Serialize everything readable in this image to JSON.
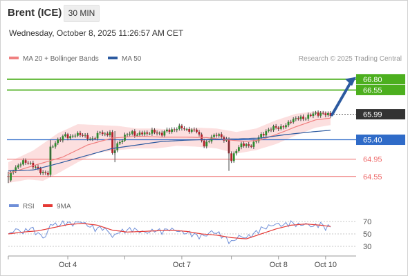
{
  "header": {
    "instrument": "Brent (ICE)",
    "timeframe": "30 MIN",
    "datetime": "Wednesday, October 8, 2025 11:26:57 AM CET"
  },
  "legend": {
    "ma20": "MA 20 + Bollinger Bands",
    "ma50": "MA 50",
    "rsi": "RSI",
    "nine_ma": "9MA",
    "credit": "Research © 2025 Trading Central"
  },
  "colors": {
    "ma20": "#f08080",
    "ma50": "#2c5aa0",
    "band_fill": "#fcdcdc",
    "target": "#4caf1e",
    "support": "#ee6a6a",
    "pivot": "#2f6bc8",
    "current": "#333333",
    "arrow": "#2c5aa0",
    "rsi": "#6f8fd8",
    "rsi_ma": "#e53935"
  },
  "chart_data": [
    {
      "type": "candlestick",
      "title": "Brent (ICE)",
      "timeframe": "30 MIN",
      "x_ticks": [
        "Oct 4",
        "Oct 7",
        "Oct 8",
        "Oct 10"
      ],
      "ylim": [
        64.1,
        67.1
      ],
      "grid": false,
      "legend_position": "top-left",
      "levels": [
        {
          "value": 66.8,
          "label": "66.80",
          "kind": "target"
        },
        {
          "value": 66.55,
          "label": "66.55",
          "kind": "target"
        },
        {
          "value": 65.99,
          "label": "65.99",
          "kind": "current"
        },
        {
          "value": 65.4,
          "label": "65.40",
          "kind": "pivot"
        },
        {
          "value": 64.95,
          "label": "64.95",
          "kind": "support"
        },
        {
          "value": 64.55,
          "label": "64.55",
          "kind": "support"
        }
      ],
      "series": [
        {
          "name": "MA 20 + Bollinger Bands",
          "role": "ma20",
          "values": [
            [
              0,
              64.62
            ],
            [
              10,
              64.8
            ],
            [
              22,
              65.0
            ],
            [
              32,
              65.28
            ],
            [
              42,
              65.44
            ],
            [
              52,
              65.48
            ],
            [
              62,
              65.46
            ],
            [
              72,
              65.46
            ],
            [
              80,
              65.45
            ],
            [
              88,
              65.4
            ],
            [
              96,
              65.36
            ],
            [
              102,
              65.4
            ],
            [
              108,
              65.52
            ],
            [
              116,
              65.7
            ],
            [
              124,
              65.86
            ],
            [
              130,
              65.9
            ]
          ],
          "upper": [
            [
              0,
              64.88
            ],
            [
              10,
              65.15
            ],
            [
              20,
              65.55
            ],
            [
              28,
              65.76
            ],
            [
              36,
              65.74
            ],
            [
              44,
              65.72
            ],
            [
              52,
              65.66
            ],
            [
              60,
              65.66
            ],
            [
              68,
              65.62
            ],
            [
              76,
              65.68
            ],
            [
              84,
              65.66
            ],
            [
              92,
              65.58
            ],
            [
              100,
              65.66
            ],
            [
              108,
              65.85
            ],
            [
              116,
              66.0
            ],
            [
              124,
              66.06
            ],
            [
              130,
              66.05
            ]
          ],
          "lower": [
            [
              0,
              64.4
            ],
            [
              8,
              64.48
            ],
            [
              14,
              64.45
            ],
            [
              20,
              64.62
            ],
            [
              28,
              64.88
            ],
            [
              36,
              65.1
            ],
            [
              44,
              65.16
            ],
            [
              52,
              65.2
            ],
            [
              60,
              65.2
            ],
            [
              68,
              65.26
            ],
            [
              76,
              65.24
            ],
            [
              84,
              65.2
            ],
            [
              92,
              65.08
            ],
            [
              100,
              65.16
            ],
            [
              108,
              65.3
            ],
            [
              116,
              65.5
            ],
            [
              124,
              65.68
            ],
            [
              130,
              65.74
            ]
          ]
        },
        {
          "name": "MA 50",
          "role": "ma50",
          "values": [
            [
              0,
              64.68
            ],
            [
              10,
              64.7
            ],
            [
              22,
              64.88
            ],
            [
              32,
              65.04
            ],
            [
              42,
              65.2
            ],
            [
              52,
              65.28
            ],
            [
              62,
              65.36
            ],
            [
              72,
              65.39
            ],
            [
              82,
              65.41
            ],
            [
              92,
              65.42
            ],
            [
              102,
              65.44
            ],
            [
              112,
              65.52
            ],
            [
              122,
              65.58
            ],
            [
              130,
              65.62
            ]
          ]
        },
        {
          "name": "Price",
          "role": "close",
          "values": [
            [
              0,
              64.5
            ],
            [
              2,
              64.72
            ],
            [
              4,
              64.8
            ],
            [
              6,
              64.88
            ],
            [
              8,
              64.9
            ],
            [
              10,
              64.78
            ],
            [
              12,
              64.72
            ],
            [
              14,
              64.64
            ],
            [
              16,
              64.6
            ],
            [
              17,
              65.2
            ],
            [
              19,
              65.35
            ],
            [
              21,
              65.4
            ],
            [
              23,
              65.52
            ],
            [
              25,
              65.46
            ],
            [
              27,
              65.5
            ],
            [
              29,
              65.55
            ],
            [
              31,
              65.47
            ],
            [
              33,
              65.4
            ],
            [
              35,
              65.48
            ],
            [
              37,
              65.56
            ],
            [
              39,
              65.52
            ],
            [
              41,
              65.58
            ],
            [
              42,
              65.05
            ],
            [
              44,
              65.3
            ],
            [
              46,
              65.42
            ],
            [
              48,
              65.52
            ],
            [
              50,
              65.58
            ],
            [
              52,
              65.5
            ],
            [
              54,
              65.55
            ],
            [
              56,
              65.56
            ],
            [
              58,
              65.58
            ],
            [
              60,
              65.56
            ],
            [
              62,
              65.54
            ],
            [
              64,
              65.6
            ],
            [
              66,
              65.63
            ],
            [
              68,
              65.66
            ],
            [
              70,
              65.68
            ],
            [
              72,
              65.64
            ],
            [
              74,
              65.6
            ],
            [
              76,
              65.62
            ],
            [
              78,
              65.4
            ],
            [
              79,
              65.25
            ],
            [
              80,
              65.3
            ],
            [
              82,
              65.48
            ],
            [
              84,
              65.52
            ],
            [
              86,
              65.45
            ],
            [
              88,
              65.4
            ],
            [
              89,
              65.1
            ],
            [
              90,
              64.9
            ],
            [
              92,
              65.18
            ],
            [
              94,
              65.3
            ],
            [
              96,
              65.25
            ],
            [
              98,
              65.28
            ],
            [
              100,
              65.38
            ],
            [
              102,
              65.5
            ],
            [
              104,
              65.6
            ],
            [
              106,
              65.64
            ],
            [
              108,
              65.7
            ],
            [
              110,
              65.68
            ],
            [
              112,
              65.72
            ],
            [
              114,
              65.86
            ],
            [
              116,
              65.88
            ],
            [
              118,
              65.9
            ],
            [
              120,
              65.92
            ],
            [
              122,
              65.96
            ],
            [
              124,
              66.02
            ],
            [
              126,
              66.0
            ],
            [
              128,
              65.98
            ],
            [
              130,
              65.99
            ]
          ]
        }
      ]
    },
    {
      "type": "line",
      "title": "RSI",
      "ylim": [
        20,
        80
      ],
      "y_ticks": [
        70,
        50,
        30
      ],
      "series": [
        {
          "name": "RSI",
          "role": "rsi",
          "values": [
            [
              0,
              48
            ],
            [
              3,
              58
            ],
            [
              6,
              52
            ],
            [
              9,
              60
            ],
            [
              12,
              50
            ],
            [
              15,
              44
            ],
            [
              17,
              66
            ],
            [
              20,
              64
            ],
            [
              23,
              68
            ],
            [
              26,
              66
            ],
            [
              29,
              70
            ],
            [
              32,
              64
            ],
            [
              35,
              58
            ],
            [
              38,
              60
            ],
            [
              41,
              52
            ],
            [
              42,
              44
            ],
            [
              44,
              52
            ],
            [
              47,
              55
            ],
            [
              50,
              58
            ],
            [
              53,
              54
            ],
            [
              56,
              52
            ],
            [
              59,
              56
            ],
            [
              62,
              54
            ],
            [
              65,
              58
            ],
            [
              68,
              55
            ],
            [
              71,
              52
            ],
            [
              74,
              50
            ],
            [
              77,
              46
            ],
            [
              80,
              48
            ],
            [
              82,
              54
            ],
            [
              85,
              50
            ],
            [
              88,
              42
            ],
            [
              90,
              36
            ],
            [
              93,
              46
            ],
            [
              96,
              44
            ],
            [
              99,
              50
            ],
            [
              102,
              58
            ],
            [
              105,
              62
            ],
            [
              108,
              66
            ],
            [
              111,
              64
            ],
            [
              114,
              68
            ],
            [
              117,
              64
            ],
            [
              120,
              66
            ],
            [
              123,
              62
            ],
            [
              126,
              66
            ],
            [
              128,
              60
            ],
            [
              130,
              62
            ]
          ]
        },
        {
          "name": "9MA",
          "role": "rsi_ma",
          "values": [
            [
              0,
              50
            ],
            [
              6,
              53
            ],
            [
              12,
              55
            ],
            [
              18,
              60
            ],
            [
              24,
              65
            ],
            [
              30,
              67
            ],
            [
              36,
              64
            ],
            [
              42,
              56
            ],
            [
              48,
              53
            ],
            [
              54,
              54
            ],
            [
              60,
              55
            ],
            [
              66,
              56
            ],
            [
              72,
              54
            ],
            [
              78,
              50
            ],
            [
              84,
              48
            ],
            [
              90,
              44
            ],
            [
              96,
              42
            ],
            [
              102,
              50
            ],
            [
              108,
              58
            ],
            [
              114,
              64
            ],
            [
              120,
              66
            ],
            [
              126,
              64
            ],
            [
              130,
              62
            ]
          ]
        }
      ]
    }
  ]
}
